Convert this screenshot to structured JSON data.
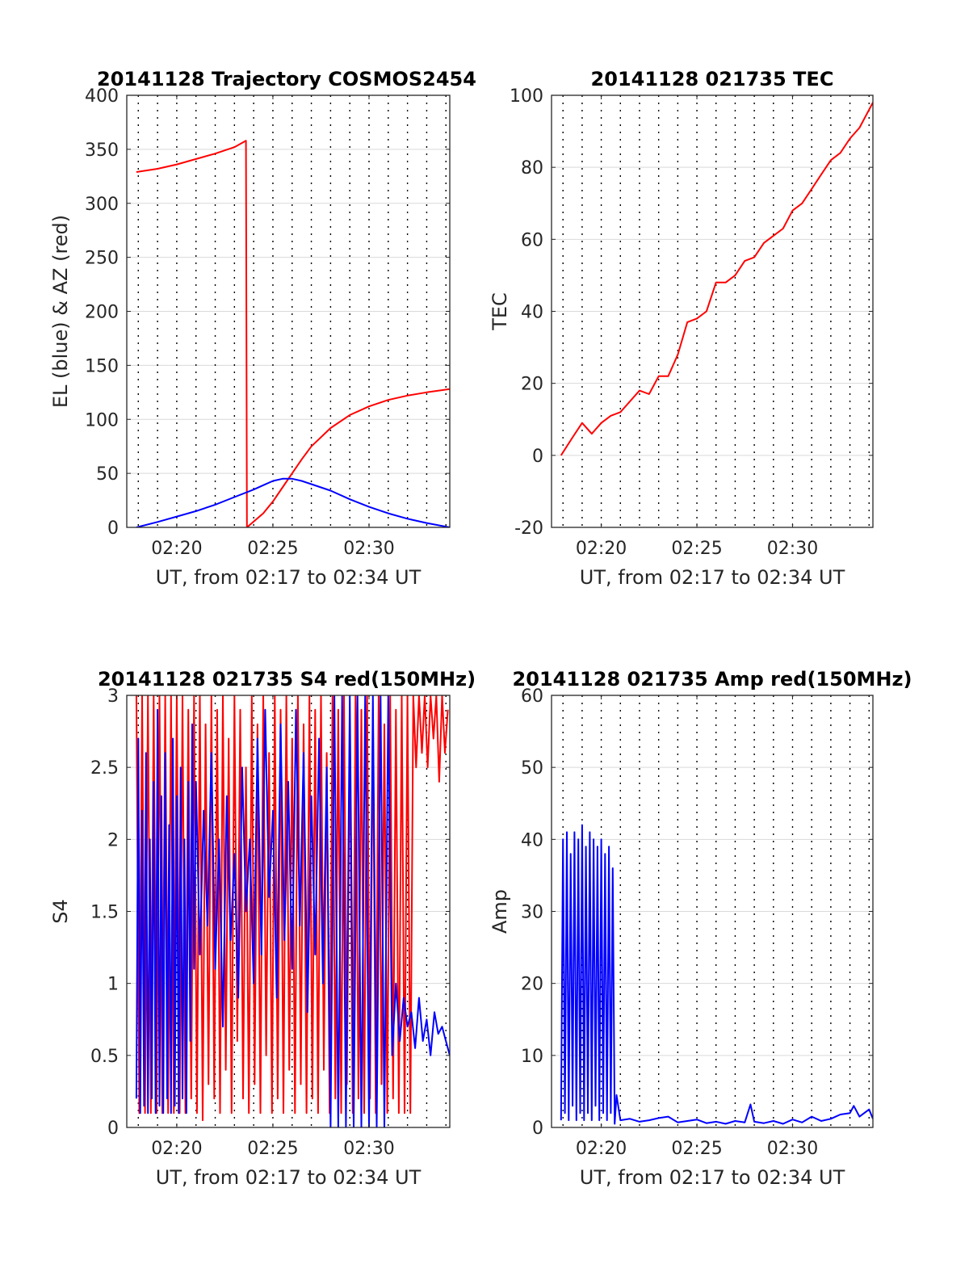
{
  "figure": {
    "background": "#ffffff",
    "grid_color": "#d9d9d9",
    "vgrid_style": "dotted"
  },
  "chart_data": [
    {
      "type": "line",
      "title": "20141128 Trajectory COSMOS2454",
      "xlabel": "UT, from 02:17 to 02:34 UT",
      "ylabel": "EL (blue) & AZ (red)",
      "xlim": [
        17.4,
        34.2
      ],
      "ylim": [
        0,
        400
      ],
      "yticks": [
        0,
        50,
        100,
        150,
        200,
        250,
        300,
        350,
        400
      ],
      "xticks": [
        20,
        25,
        30
      ],
      "xtick_labels": [
        "02:20",
        "02:25",
        "02:30"
      ],
      "grid": true,
      "series": [
        {
          "color": "#ff0000",
          "x": [
            17.9,
            19.0,
            20.0,
            21.0,
            22.0,
            23.0,
            23.6,
            23.65,
            24.5,
            25.0,
            25.5,
            26.0,
            26.5,
            27.0,
            28.0,
            29.0,
            30.0,
            31.0,
            32.0,
            33.0,
            34.2
          ],
          "y": [
            329,
            332,
            336,
            341,
            346,
            352,
            358,
            0,
            13,
            24,
            37,
            50,
            63,
            75,
            92,
            104,
            112,
            118,
            122,
            125,
            128
          ]
        },
        {
          "color": "#0000ff",
          "x": [
            17.9,
            19.0,
            20.0,
            21.0,
            22.0,
            23.0,
            24.0,
            24.5,
            25.0,
            25.5,
            26.0,
            26.5,
            27.0,
            28.0,
            29.0,
            30.0,
            31.0,
            32.0,
            33.0,
            34.2
          ],
          "y": [
            0,
            5,
            10,
            15,
            21,
            28,
            35,
            39,
            43,
            45,
            45,
            43,
            40,
            34,
            26,
            19,
            13,
            8,
            4,
            0
          ]
        }
      ]
    },
    {
      "type": "line",
      "title": "20141128 021735 TEC",
      "xlabel": "UT, from 02:17 to 02:34 UT",
      "ylabel": "TEC",
      "xlim": [
        17.4,
        34.2
      ],
      "ylim": [
        -20,
        100
      ],
      "yticks": [
        -20,
        0,
        20,
        40,
        60,
        80,
        100
      ],
      "xticks": [
        20,
        25,
        30
      ],
      "xtick_labels": [
        "02:20",
        "02:25",
        "02:30"
      ],
      "grid": true,
      "series": [
        {
          "color": "#ff0000",
          "x": [
            17.9,
            18.5,
            19.0,
            19.5,
            20.0,
            20.5,
            21.0,
            21.5,
            22.0,
            22.5,
            23.0,
            23.5,
            24.0,
            24.5,
            25.0,
            25.5,
            26.0,
            26.5,
            27.0,
            27.5,
            28.0,
            28.5,
            29.0,
            29.5,
            30.0,
            30.5,
            31.0,
            31.5,
            32.0,
            32.5,
            33.0,
            33.5,
            34.2
          ],
          "y": [
            0,
            5,
            9,
            6,
            9,
            11,
            12,
            15,
            18,
            17,
            22,
            22,
            28,
            37,
            38,
            40,
            48,
            48,
            50,
            54,
            55,
            59,
            61,
            63,
            68,
            70,
            74,
            78,
            82,
            84,
            88,
            91,
            98
          ]
        }
      ]
    },
    {
      "type": "line",
      "title": "20141128 021735 S4 red(150MHz)",
      "xlabel": "UT, from 02:17 to 02:34 UT",
      "ylabel": "S4",
      "xlim": [
        17.4,
        34.2
      ],
      "ylim": [
        0,
        3
      ],
      "yticks": [
        0,
        0.5,
        1,
        1.5,
        2,
        2.5,
        3
      ],
      "ytick_labels": [
        "0",
        "0.5",
        "1",
        "1.5",
        "2",
        "2.5",
        "3"
      ],
      "xticks": [
        20,
        25,
        30
      ],
      "xtick_labels": [
        "02:20",
        "02:25",
        "02:30"
      ],
      "grid": true,
      "series": [
        {
          "color": "#ff0000",
          "x": [
            17.9,
            18.05,
            18.2,
            18.35,
            18.5,
            18.65,
            18.8,
            18.95,
            19.1,
            19.25,
            19.4,
            19.55,
            19.7,
            19.85,
            20.0,
            20.15,
            20.3,
            20.45,
            20.6,
            20.75,
            20.9,
            21.05,
            21.2,
            21.35,
            21.5,
            21.65,
            21.8,
            21.95,
            22.1,
            22.25,
            22.4,
            22.55,
            22.7,
            22.85,
            23.0,
            23.15,
            23.3,
            23.45,
            23.6,
            23.75,
            23.9,
            24.05,
            24.2,
            24.35,
            24.5,
            24.65,
            24.8,
            24.95,
            25.1,
            25.25,
            25.4,
            25.55,
            25.7,
            25.85,
            26.0,
            26.15,
            26.3,
            26.45,
            26.6,
            26.75,
            26.9,
            27.05,
            27.2,
            27.35,
            27.5,
            27.65,
            27.8,
            27.95,
            28.1,
            28.25,
            28.4,
            28.55,
            28.7,
            28.85,
            29.0,
            29.15,
            29.3,
            29.45,
            29.6,
            29.75,
            29.9,
            30.05,
            30.2,
            30.35,
            30.5,
            30.65,
            30.8,
            30.95,
            31.1,
            31.25,
            31.4,
            31.55,
            31.7,
            31.85,
            32.0,
            32.15,
            32.3,
            32.45,
            32.6,
            32.75,
            32.9,
            33.05,
            33.2,
            33.35,
            33.5,
            33.65,
            33.8,
            33.95,
            34.1
          ],
          "y": [
            3,
            0.1,
            3,
            0.1,
            3,
            0.1,
            3,
            0.1,
            3,
            0.1,
            3,
            0.1,
            3,
            0.1,
            3,
            0.1,
            3,
            0.1,
            2.9,
            0.2,
            3,
            0.1,
            3,
            0.05,
            2.8,
            0.3,
            3,
            0.2,
            2.9,
            0.1,
            3,
            0.4,
            2.7,
            0.1,
            3,
            0.6,
            2.9,
            0.2,
            2.5,
            0.1,
            3,
            0.3,
            2.8,
            0.1,
            3,
            0.5,
            2.6,
            0.1,
            3,
            0.2,
            2.9,
            0.1,
            3,
            0.4,
            2.7,
            0.1,
            3,
            0.3,
            2.8,
            0.1,
            3,
            0.2,
            2.9,
            0.1,
            3,
            0.4,
            2.6,
            0.1,
            3,
            0.2,
            2.9,
            0.1,
            3,
            0.3,
            2.8,
            0.1,
            3,
            0.2,
            2.9,
            0.1,
            3,
            0.2,
            2.9,
            0.1,
            3,
            0.3,
            2.8,
            0.1,
            3,
            0.2,
            2.9,
            0.1,
            3,
            0.1,
            3,
            0.1,
            3,
            2.5,
            3,
            2.6,
            3,
            2.5,
            3,
            2.7,
            3,
            2.4,
            3,
            2.6,
            2.9
          ]
        },
        {
          "color": "#0000ff",
          "x": [
            17.9,
            18.0,
            18.1,
            18.2,
            18.3,
            18.4,
            18.5,
            18.6,
            18.7,
            18.8,
            18.9,
            19.0,
            19.1,
            19.2,
            19.3,
            19.4,
            19.5,
            19.6,
            19.7,
            19.8,
            19.9,
            20.0,
            20.1,
            20.2,
            20.3,
            20.4,
            20.5,
            20.6,
            20.7,
            20.8,
            20.9,
            21.0,
            21.2,
            21.4,
            21.6,
            21.8,
            22.0,
            22.2,
            22.4,
            22.6,
            22.8,
            23.0,
            23.2,
            23.4,
            23.6,
            23.8,
            24.0,
            24.2,
            24.4,
            24.6,
            24.8,
            25.0,
            25.2,
            25.4,
            25.6,
            25.8,
            26.0,
            26.2,
            26.4,
            26.6,
            26.8,
            27.0,
            27.2,
            27.4,
            27.6,
            27.8,
            28.0,
            28.2,
            28.4,
            28.6,
            28.8,
            29.0,
            29.2,
            29.4,
            29.6,
            29.8,
            30.0,
            30.2,
            30.4,
            30.6,
            30.8,
            31.0,
            31.2,
            31.4,
            31.6,
            31.8,
            32.0,
            32.2,
            32.4,
            32.6,
            32.8,
            33.0,
            33.2,
            33.4,
            33.6,
            33.8,
            34.0,
            34.2
          ],
          "y": [
            0.2,
            2.7,
            0.1,
            2.2,
            0.15,
            2.6,
            0.1,
            2.0,
            0.2,
            2.4,
            0.1,
            2.9,
            0.15,
            2.3,
            0.1,
            2.6,
            0.2,
            2.1,
            0.1,
            2.7,
            0.15,
            2.3,
            0.1,
            2.5,
            0.2,
            2.0,
            0.1,
            2.4,
            0.6,
            2.8,
            1.1,
            2.4,
            1.2,
            2.2,
            1.4,
            2.6,
            1.1,
            2.0,
            0.7,
            2.3,
            1.3,
            1.9,
            0.9,
            2.5,
            1.5,
            2.0,
            1.0,
            2.7,
            1.2,
            2.9,
            1.6,
            2.2,
            0.9,
            2.8,
            1.3,
            2.4,
            1.1,
            2.9,
            1.4,
            2.6,
            0.8,
            2.3,
            1.2,
            2.7,
            1.0,
            2.5,
            0.0,
            3.0,
            0.0,
            3.0,
            0.0,
            3.0,
            0.0,
            3.0,
            0.0,
            3.0,
            0.0,
            3.0,
            0.0,
            3.0,
            0.0,
            3.0,
            0.5,
            1.0,
            0.6,
            0.9,
            0.7,
            0.8,
            0.55,
            0.9,
            0.6,
            0.75,
            0.5,
            0.8,
            0.65,
            0.7,
            0.6,
            0.5
          ]
        }
      ]
    },
    {
      "type": "line",
      "title": "20141128 021735 Amp red(150MHz)",
      "xlabel": "UT, from 02:17 to 02:34 UT",
      "ylabel": "Amp",
      "xlim": [
        17.4,
        34.2
      ],
      "ylim": [
        0,
        60
      ],
      "yticks": [
        0,
        10,
        20,
        30,
        40,
        50,
        60
      ],
      "xticks": [
        20,
        25,
        30
      ],
      "xtick_labels": [
        "02:20",
        "02:25",
        "02:30"
      ],
      "grid": true,
      "series": [
        {
          "color": "#0000ff",
          "x": [
            17.9,
            18.0,
            18.1,
            18.2,
            18.3,
            18.4,
            18.5,
            18.6,
            18.7,
            18.8,
            18.9,
            19.0,
            19.1,
            19.2,
            19.3,
            19.4,
            19.5,
            19.6,
            19.7,
            19.8,
            19.9,
            20.0,
            20.1,
            20.2,
            20.3,
            20.4,
            20.5,
            20.6,
            20.7,
            20.8,
            21.0,
            21.5,
            22.0,
            22.5,
            23.0,
            23.5,
            24.0,
            24.5,
            25.0,
            25.5,
            26.0,
            26.5,
            27.0,
            27.5,
            27.8,
            28.0,
            28.5,
            29.0,
            29.5,
            30.0,
            30.5,
            31.0,
            31.5,
            32.0,
            32.5,
            33.0,
            33.2,
            33.5,
            34.0,
            34.2
          ],
          "y": [
            1,
            40,
            2,
            41,
            1,
            38,
            3,
            41,
            1,
            40,
            2,
            42,
            1,
            39,
            2,
            41,
            1,
            40,
            3,
            39,
            1,
            40,
            2,
            38,
            1,
            39,
            2,
            36,
            0.5,
            4.5,
            1.0,
            1.2,
            0.8,
            1.0,
            1.3,
            1.5,
            0.7,
            0.9,
            1.1,
            0.6,
            0.8,
            0.5,
            0.9,
            0.7,
            3.2,
            0.8,
            0.6,
            0.9,
            0.5,
            1.1,
            0.7,
            1.5,
            0.9,
            1.2,
            1.8,
            2.0,
            3.0,
            1.5,
            2.5,
            1.2
          ]
        }
      ]
    }
  ]
}
